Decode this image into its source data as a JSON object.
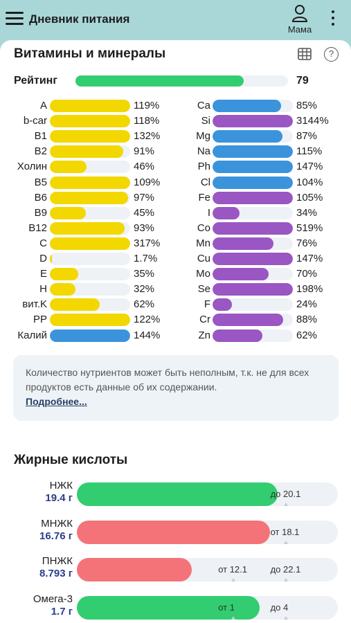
{
  "appbar": {
    "title": "Дневник питания",
    "profile_label": "Мама"
  },
  "vitamins": {
    "title": "Витамины и минералы",
    "rating_label": "Рейтинг",
    "rating_value": "79",
    "rating_fraction": 0.79,
    "colors": {
      "yellow": "#f2d700",
      "blue": "#3b93dc",
      "purple": "#9a56c3",
      "green": "#32cd70",
      "red": "#f47378"
    },
    "left": [
      {
        "label": "A",
        "pct": "119%",
        "value": 119,
        "color": "yellow"
      },
      {
        "label": "b-car",
        "pct": "118%",
        "value": 118,
        "color": "yellow"
      },
      {
        "label": "B1",
        "pct": "132%",
        "value": 132,
        "color": "yellow"
      },
      {
        "label": "B2",
        "pct": "91%",
        "value": 91,
        "color": "yellow"
      },
      {
        "label": "Холин",
        "pct": "46%",
        "value": 46,
        "color": "yellow"
      },
      {
        "label": "B5",
        "pct": "109%",
        "value": 109,
        "color": "yellow"
      },
      {
        "label": "B6",
        "pct": "97%",
        "value": 97,
        "color": "yellow"
      },
      {
        "label": "B9",
        "pct": "45%",
        "value": 45,
        "color": "yellow"
      },
      {
        "label": "B12",
        "pct": "93%",
        "value": 93,
        "color": "yellow"
      },
      {
        "label": "C",
        "pct": "317%",
        "value": 317,
        "color": "yellow"
      },
      {
        "label": "D",
        "pct": "1.7%",
        "value": 1.7,
        "color": "yellow"
      },
      {
        "label": "E",
        "pct": "35%",
        "value": 35,
        "color": "yellow"
      },
      {
        "label": "H",
        "pct": "32%",
        "value": 32,
        "color": "yellow"
      },
      {
        "label": "вит.K",
        "pct": "62%",
        "value": 62,
        "color": "yellow"
      },
      {
        "label": "PP",
        "pct": "122%",
        "value": 122,
        "color": "yellow"
      },
      {
        "label": "Калий",
        "pct": "144%",
        "value": 144,
        "color": "blue"
      }
    ],
    "right": [
      {
        "label": "Ca",
        "pct": "85%",
        "value": 85,
        "color": "blue"
      },
      {
        "label": "Si",
        "pct": "3144%",
        "value": 3144,
        "color": "purple"
      },
      {
        "label": "Mg",
        "pct": "87%",
        "value": 87,
        "color": "blue"
      },
      {
        "label": "Na",
        "pct": "115%",
        "value": 115,
        "color": "blue"
      },
      {
        "label": "Ph",
        "pct": "147%",
        "value": 147,
        "color": "blue"
      },
      {
        "label": "Cl",
        "pct": "104%",
        "value": 104,
        "color": "blue"
      },
      {
        "label": "Fe",
        "pct": "105%",
        "value": 105,
        "color": "purple"
      },
      {
        "label": "I",
        "pct": "34%",
        "value": 34,
        "color": "purple"
      },
      {
        "label": "Co",
        "pct": "519%",
        "value": 519,
        "color": "purple"
      },
      {
        "label": "Mn",
        "pct": "76%",
        "value": 76,
        "color": "purple"
      },
      {
        "label": "Cu",
        "pct": "147%",
        "value": 147,
        "color": "purple"
      },
      {
        "label": "Mo",
        "pct": "70%",
        "value": 70,
        "color": "purple"
      },
      {
        "label": "Se",
        "pct": "198%",
        "value": 198,
        "color": "purple"
      },
      {
        "label": "F",
        "pct": "24%",
        "value": 24,
        "color": "purple"
      },
      {
        "label": "Cr",
        "pct": "88%",
        "value": 88,
        "color": "purple"
      },
      {
        "label": "Zn",
        "pct": "62%",
        "value": 62,
        "color": "purple"
      }
    ]
  },
  "note": {
    "text": "Количество нутриентов может быть неполным, т.к. не для всех продуктов есть данные об их содержании.",
    "link": "Подробнее..."
  },
  "fatty_acids": {
    "title": "Жирные кислоты",
    "rows": [
      {
        "name": "НЖК",
        "value": "19.4 г",
        "fill": 0.77,
        "color": "green",
        "marks": [
          {
            "text": "до 20.1",
            "at": 0.8
          }
        ]
      },
      {
        "name": "МНЖК",
        "value": "16.76 г",
        "fill": 0.74,
        "color": "red",
        "marks": [
          {
            "text": "от 18.1",
            "at": 0.8
          }
        ]
      },
      {
        "name": "ПНЖК",
        "value": "8.793 г",
        "fill": 0.44,
        "color": "red",
        "marks": [
          {
            "text": "от 12.1",
            "at": 0.6
          },
          {
            "text": "до 22.1",
            "at": 0.8
          }
        ]
      },
      {
        "name": "Омега-3",
        "value": "1.7 г",
        "fill": 0.7,
        "color": "green",
        "marks": [
          {
            "text": "от 1",
            "at": 0.6
          },
          {
            "text": "до 4",
            "at": 0.8
          }
        ]
      }
    ]
  }
}
